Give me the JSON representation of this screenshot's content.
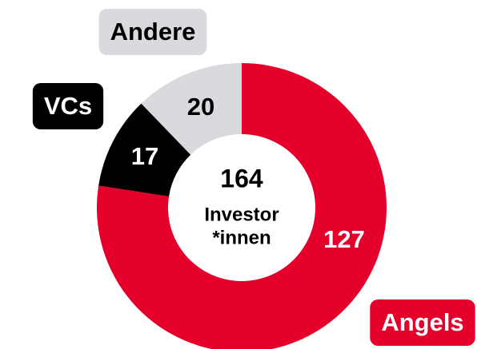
{
  "chart_data": {
    "type": "donut",
    "categories": [
      "Angels",
      "VCs",
      "Andere"
    ],
    "values": [
      127,
      17,
      20
    ],
    "colors": [
      "#e4002b",
      "#000000",
      "#d9d9de"
    ],
    "total": 164,
    "center_label": [
      "Investor",
      "*innen"
    ]
  }
}
